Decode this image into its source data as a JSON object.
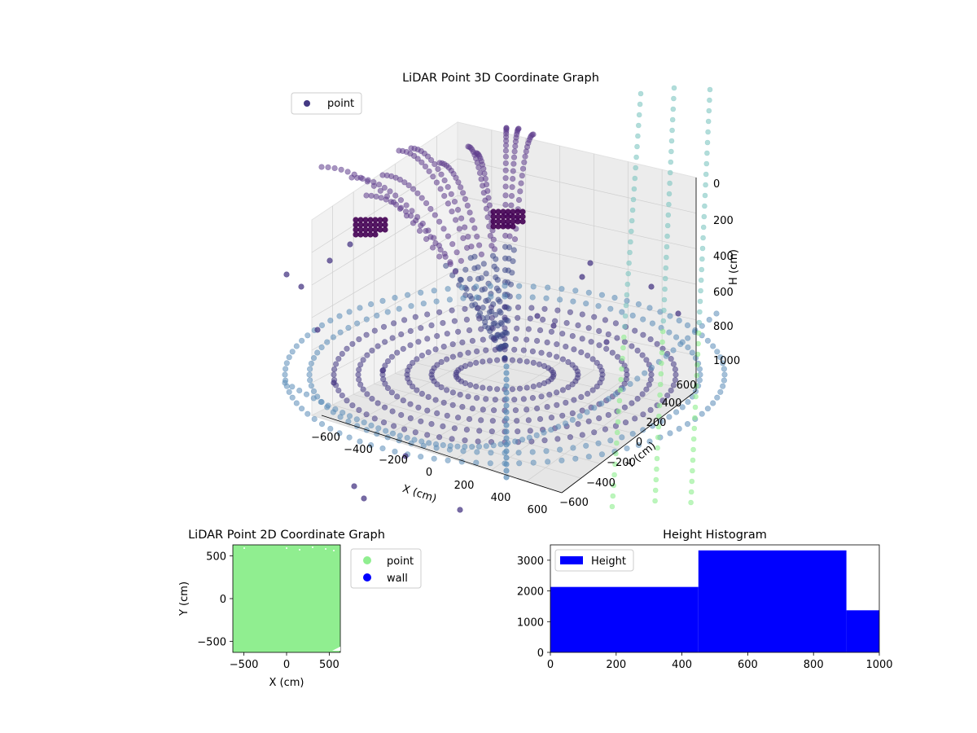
{
  "colors": {
    "purple_dark": "#440154",
    "purple_mid": "#443983",
    "blue_grey": "#5b8db8",
    "teal": "#7fc6c2",
    "green_light": "#90ee90",
    "wall_blue": "#0000ff",
    "hist_blue": "#0000ff",
    "pane": "#f0f0f0",
    "grid": "#cfcfcf"
  },
  "chart_data": [
    {
      "type": "scatter",
      "projection": "3d",
      "title": "LiDAR Point 3D Coordinate Graph",
      "xlabel": "X (cm)",
      "ylabel": "Y (cm)",
      "zlabel": "H (cm)",
      "x_ticks": [
        "−600",
        "−400",
        "−200",
        "0",
        "200",
        "400",
        "600"
      ],
      "y_ticks": [
        "−600",
        "−400",
        "−200",
        "0",
        "200",
        "400",
        "600"
      ],
      "z_ticks": [
        "0",
        "200",
        "400",
        "600",
        "800",
        "1000"
      ],
      "z_inverted": true,
      "legend": {
        "entries": [
          "point"
        ],
        "placement": "top-left"
      },
      "series": [
        {
          "name": "point",
          "color": "#443983",
          "shape": "dome-shaped sweep of scan rings converging to a centre point"
        }
      ],
      "grid": true
    },
    {
      "type": "scatter",
      "title": "LiDAR Point 2D Coordinate Graph",
      "xlabel": "X (cm)",
      "ylabel": "Y (cm)",
      "x_ticks": [
        "−500",
        "0",
        "500"
      ],
      "y_ticks": [
        "500",
        "0",
        "−500"
      ],
      "xlim": [
        -630,
        630
      ],
      "ylim": [
        -630,
        630
      ],
      "legend": {
        "entries": [
          "point",
          "wall"
        ],
        "placement": "outside right"
      },
      "series": [
        {
          "name": "point",
          "color": "#90ee90"
        },
        {
          "name": "wall",
          "color": "#0000ff"
        }
      ]
    },
    {
      "type": "bar",
      "title": "Height Histogram",
      "legend": {
        "entries": [
          "Height"
        ],
        "placement": "top-left"
      },
      "x_ticks": [
        "0",
        "200",
        "400",
        "600",
        "800",
        "1000"
      ],
      "y_ticks": [
        "0",
        "1000",
        "2000",
        "3000"
      ],
      "xlim": [
        0,
        1000
      ],
      "ylim": [
        0,
        3500
      ],
      "bins": [
        {
          "x0": 0,
          "x1": 450,
          "count": 2130
        },
        {
          "x0": 450,
          "x1": 900,
          "count": 3320
        },
        {
          "x0": 900,
          "x1": 1000,
          "count": 1370
        }
      ],
      "series": [
        {
          "name": "Height",
          "color": "#0000ff"
        }
      ]
    }
  ]
}
